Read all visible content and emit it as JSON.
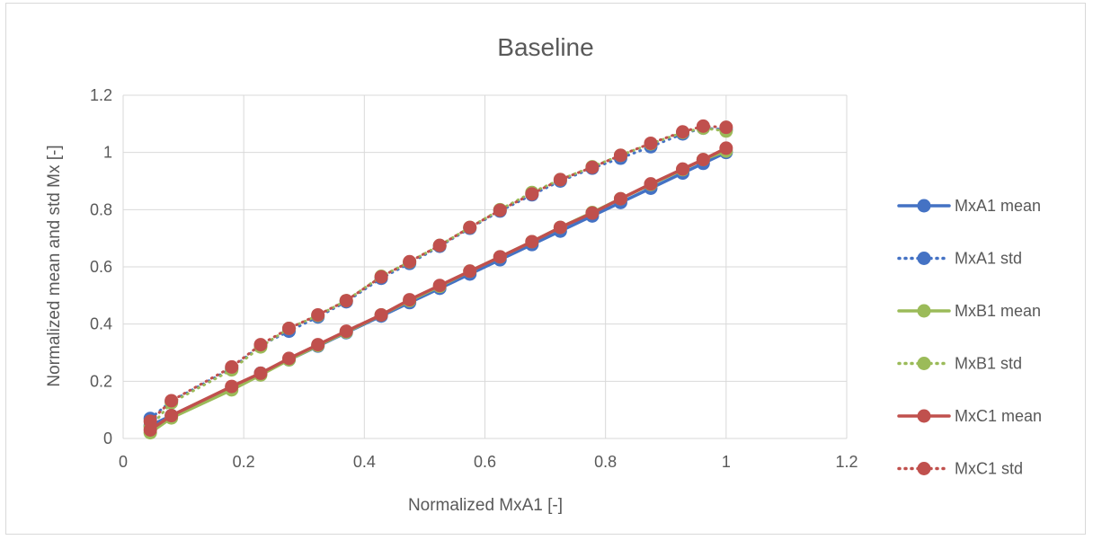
{
  "chart_data": {
    "type": "line",
    "title": "Baseline",
    "xlabel": "Normalized MxA1 [-]",
    "ylabel": "Normalized mean and std Mx [-]",
    "xlim": [
      0,
      1.2
    ],
    "ylim": [
      0,
      1.2
    ],
    "x_ticks": [
      "0",
      "0.2",
      "0.4",
      "0.6",
      "0.8",
      "1",
      "1.2"
    ],
    "y_ticks": [
      "0",
      "0.2",
      "0.4",
      "0.6",
      "0.8",
      "1",
      "1.2"
    ],
    "grid": true,
    "legend_position": "right",
    "series": [
      {
        "name": "MxA1 mean",
        "color": "#4472C4",
        "dash": "solid",
        "x": [
          0.045,
          0.08,
          0.18,
          0.228,
          0.275,
          0.323,
          0.37,
          0.428,
          0.475,
          0.525,
          0.575,
          0.625,
          0.678,
          0.725,
          0.778,
          0.825,
          0.875,
          0.928,
          0.962,
          1.0
        ],
        "y": [
          0.045,
          0.08,
          0.18,
          0.228,
          0.275,
          0.323,
          0.37,
          0.428,
          0.475,
          0.525,
          0.575,
          0.625,
          0.678,
          0.725,
          0.778,
          0.825,
          0.875,
          0.928,
          0.962,
          1.0
        ]
      },
      {
        "name": "MxA1 std",
        "color": "#4472C4",
        "dash": "dotted",
        "x": [
          0.045,
          0.08,
          0.18,
          0.228,
          0.275,
          0.323,
          0.37,
          0.428,
          0.475,
          0.525,
          0.575,
          0.625,
          0.678,
          0.725,
          0.778,
          0.825,
          0.875,
          0.928,
          0.962,
          1.0
        ],
        "y": [
          0.07,
          0.13,
          0.245,
          0.325,
          0.375,
          0.425,
          0.478,
          0.56,
          0.612,
          0.672,
          0.735,
          0.795,
          0.852,
          0.9,
          0.945,
          0.98,
          1.02,
          1.065,
          1.085,
          1.08
        ]
      },
      {
        "name": "MxB1 mean",
        "color": "#9BBB59",
        "dash": "solid",
        "x": [
          0.045,
          0.08,
          0.18,
          0.228,
          0.275,
          0.323,
          0.37,
          0.428,
          0.475,
          0.525,
          0.575,
          0.625,
          0.678,
          0.725,
          0.778,
          0.825,
          0.875,
          0.928,
          0.962,
          1.0
        ],
        "y": [
          0.02,
          0.072,
          0.17,
          0.222,
          0.275,
          0.325,
          0.372,
          0.432,
          0.482,
          0.532,
          0.585,
          0.635,
          0.688,
          0.738,
          0.79,
          0.838,
          0.888,
          0.94,
          0.975,
          1.005
        ]
      },
      {
        "name": "MxB1 std",
        "color": "#9BBB59",
        "dash": "dotted",
        "x": [
          0.045,
          0.08,
          0.18,
          0.228,
          0.275,
          0.323,
          0.37,
          0.428,
          0.475,
          0.525,
          0.575,
          0.625,
          0.678,
          0.725,
          0.778,
          0.825,
          0.875,
          0.928,
          0.962,
          1.0
        ],
        "y": [
          0.04,
          0.125,
          0.24,
          0.32,
          0.385,
          0.43,
          0.482,
          0.567,
          0.617,
          0.675,
          0.738,
          0.8,
          0.86,
          0.905,
          0.95,
          0.99,
          1.03,
          1.07,
          1.085,
          1.075
        ]
      },
      {
        "name": "MxC1 mean",
        "color": "#C0504D",
        "dash": "solid",
        "x": [
          0.045,
          0.08,
          0.18,
          0.228,
          0.275,
          0.323,
          0.37,
          0.428,
          0.475,
          0.525,
          0.575,
          0.625,
          0.678,
          0.725,
          0.778,
          0.825,
          0.875,
          0.928,
          0.962,
          1.0
        ],
        "y": [
          0.03,
          0.08,
          0.182,
          0.228,
          0.28,
          0.328,
          0.375,
          0.432,
          0.485,
          0.535,
          0.585,
          0.635,
          0.688,
          0.738,
          0.788,
          0.838,
          0.89,
          0.942,
          0.975,
          1.015
        ]
      },
      {
        "name": "MxC1 std",
        "color": "#C0504D",
        "dash": "dotted",
        "x": [
          0.045,
          0.08,
          0.18,
          0.228,
          0.275,
          0.323,
          0.37,
          0.428,
          0.475,
          0.525,
          0.575,
          0.625,
          0.678,
          0.725,
          0.778,
          0.825,
          0.875,
          0.928,
          0.962,
          1.0
        ],
        "y": [
          0.06,
          0.132,
          0.25,
          0.328,
          0.385,
          0.432,
          0.482,
          0.565,
          0.618,
          0.675,
          0.738,
          0.798,
          0.855,
          0.905,
          0.948,
          0.99,
          1.032,
          1.072,
          1.092,
          1.088
        ]
      }
    ]
  }
}
